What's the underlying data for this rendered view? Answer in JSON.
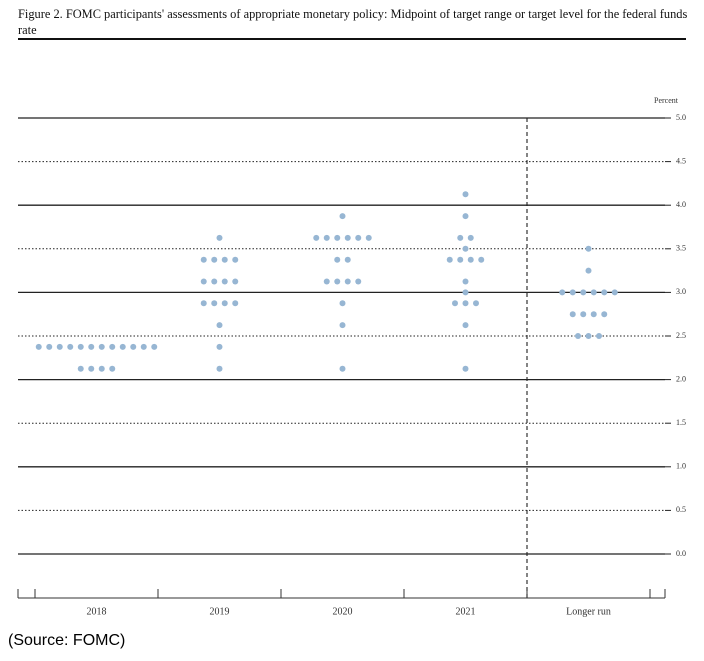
{
  "chart_data": {
    "type": "dot",
    "title": "Figure 2. FOMC participants' assessments of appropriate monetary policy: Midpoint of target range or target level for the federal funds rate",
    "y_axis_label": "Percent",
    "note": "(Source: FOMC)",
    "categories": [
      "2018",
      "2019",
      "2020",
      "2021",
      "Longer run"
    ],
    "columns": [
      {
        "levels": [
          2.375,
          2.125
        ],
        "counts": [
          12,
          4
        ]
      },
      {
        "levels": [
          3.625,
          3.375,
          3.125,
          2.875,
          2.625,
          2.375,
          2.125
        ],
        "counts": [
          1,
          4,
          4,
          4,
          1,
          1,
          1
        ]
      },
      {
        "levels": [
          3.875,
          3.625,
          3.375,
          3.125,
          2.875,
          2.625,
          2.125
        ],
        "counts": [
          1,
          6,
          2,
          4,
          1,
          1,
          1
        ]
      },
      {
        "levels": [
          4.125,
          3.875,
          3.625,
          3.5,
          3.375,
          3.125,
          3.0,
          2.875,
          2.625,
          2.125
        ],
        "counts": [
          1,
          1,
          2,
          1,
          4,
          1,
          1,
          3,
          1,
          1
        ]
      },
      {
        "levels": [
          3.5,
          3.25,
          3.0,
          2.75,
          2.5
        ],
        "counts": [
          1,
          1,
          6,
          4,
          3
        ]
      }
    ],
    "color": "#97b6d3",
    "ylim": [
      0,
      5
    ],
    "yticks": [
      {
        "value": 0,
        "label": "0.0"
      },
      0.5,
      {
        "value": 1,
        "label": "1.0"
      },
      1.5,
      {
        "value": 2,
        "label": "2.0"
      },
      2.5,
      {
        "value": 3,
        "label": "3.0"
      },
      3.5,
      {
        "value": 4,
        "label": "4.0"
      },
      4.5,
      {
        "value": 5,
        "label": "5.0"
      }
    ],
    "grid": true
  }
}
